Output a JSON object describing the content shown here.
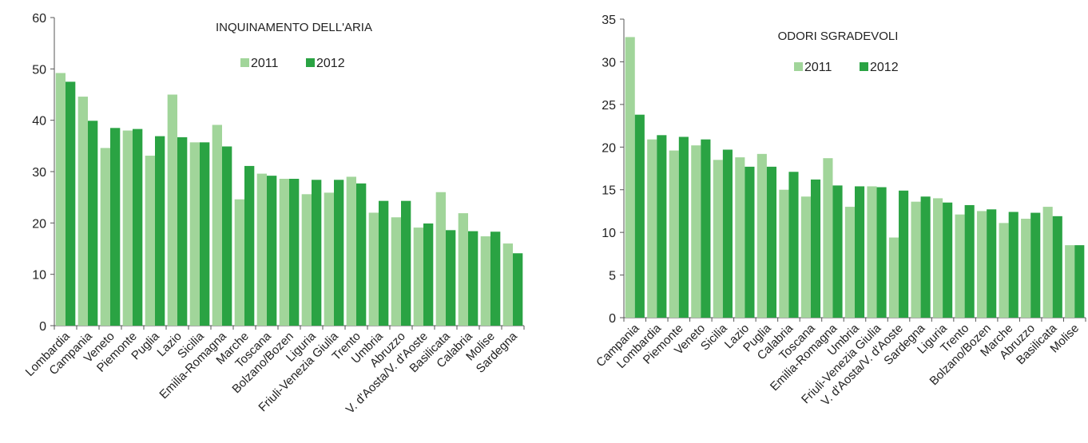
{
  "chart_data": [
    {
      "type": "bar",
      "title": "INQUINAMENTO DELL'ARIA",
      "ylim": [
        0,
        60
      ],
      "yticks": [
        0,
        10,
        20,
        30,
        40,
        50,
        60
      ],
      "grid": false,
      "legend_position": "top-center",
      "categories": [
        "Lombardia",
        "Campania",
        "Veneto",
        "Piemonte",
        "Puglia",
        "Lazio",
        "Sicilia",
        "Emilia-Romagna",
        "Marche",
        "Toscana",
        "Bolzano/Bozen",
        "Liguria",
        "Friuli-Venezia Giulia",
        "Trento",
        "Umbria",
        "Abruzzo",
        "V. d'Aosta/V. d'Aoste",
        "Basilicata",
        "Calabria",
        "Molise",
        "Sardegna"
      ],
      "series": [
        {
          "name": "2011",
          "color": "#a1d59a",
          "values": [
            49.2,
            44.6,
            34.6,
            38.0,
            33.1,
            45.0,
            35.7,
            39.1,
            24.6,
            29.6,
            28.6,
            25.6,
            25.9,
            29.0,
            22.0,
            21.1,
            19.1,
            26.0,
            21.9,
            17.4,
            16.0
          ]
        },
        {
          "name": "2012",
          "color": "#2aa343",
          "values": [
            47.5,
            39.9,
            38.5,
            38.3,
            36.9,
            36.7,
            35.7,
            34.9,
            31.1,
            29.2,
            28.6,
            28.4,
            28.4,
            27.7,
            24.3,
            24.3,
            19.9,
            18.6,
            18.4,
            18.3,
            14.1
          ]
        }
      ]
    },
    {
      "type": "bar",
      "title": "ODORI SGRADEVOLI",
      "ylim": [
        0,
        35
      ],
      "yticks": [
        0,
        5,
        10,
        15,
        20,
        25,
        30,
        35
      ],
      "grid": false,
      "legend_position": "top-center",
      "categories": [
        "Campania",
        "Lombardia",
        "Piemonte",
        "Veneto",
        "Sicilia",
        "Lazio",
        "Puglia",
        "Calabria",
        "Toscana",
        "Emilia-Romagna",
        "Umbria",
        "Friuli-Venezia Giulia",
        "V. d'Aosta/V. d'Aoste",
        "Sardegna",
        "Liguria",
        "Trento",
        "Bolzano/Bozen",
        "Marche",
        "Abruzzo",
        "Basilicata",
        "Molise"
      ],
      "series": [
        {
          "name": "2011",
          "color": "#a1d59a",
          "values": [
            32.9,
            20.9,
            19.6,
            20.2,
            18.5,
            18.8,
            19.2,
            15.0,
            14.2,
            18.7,
            13.0,
            15.4,
            9.4,
            13.6,
            14.0,
            12.1,
            12.5,
            11.1,
            11.6,
            13.0,
            8.5
          ]
        },
        {
          "name": "2012",
          "color": "#2aa343",
          "values": [
            23.8,
            21.4,
            21.2,
            20.9,
            19.7,
            17.7,
            17.7,
            17.1,
            16.2,
            15.5,
            15.4,
            15.3,
            14.9,
            14.2,
            13.5,
            13.2,
            12.7,
            12.4,
            12.3,
            11.9,
            8.5
          ]
        }
      ]
    }
  ]
}
